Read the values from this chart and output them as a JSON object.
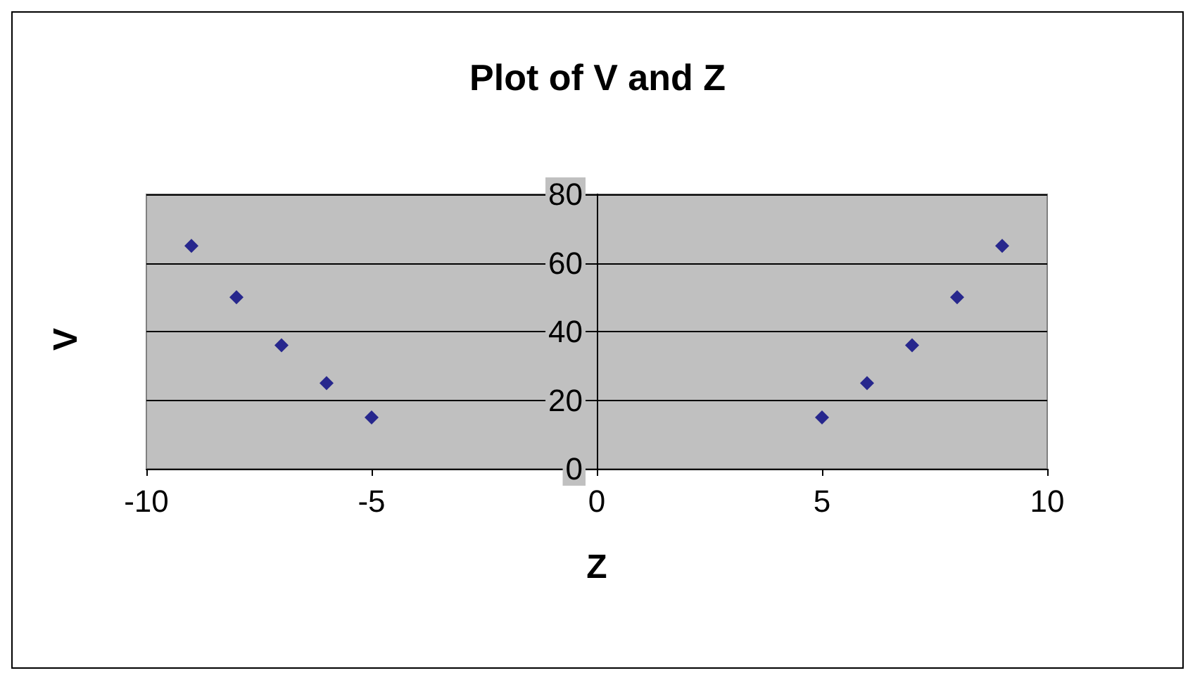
{
  "chart_data": {
    "type": "scatter",
    "title": "Plot of V and Z",
    "xlabel": "Z",
    "ylabel": "V",
    "x": [
      -9,
      -8,
      -7,
      -6,
      -5,
      5,
      6,
      7,
      8,
      9
    ],
    "series": [
      {
        "color": "#000080",
        "values": [
          65,
          50,
          36,
          25,
          15,
          15,
          25,
          36,
          50,
          65
        ]
      }
    ],
    "xlim": [
      -10,
      10
    ],
    "xticks": [
      -10,
      -5,
      0,
      5,
      10
    ],
    "ylim": [
      0,
      80
    ],
    "yticks": [
      0,
      20,
      40,
      60,
      80
    ],
    "grid": "y",
    "marker": "diamond"
  }
}
